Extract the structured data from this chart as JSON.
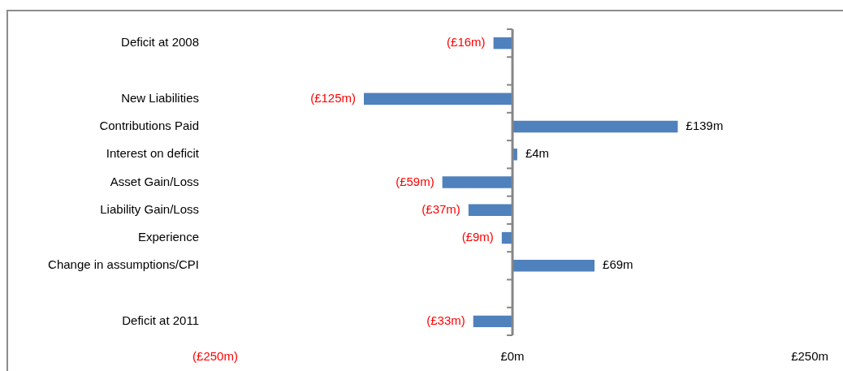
{
  "chart_data": {
    "type": "bar",
    "orientation": "horizontal",
    "categories": [
      "Deficit at 2008",
      null,
      "New Liabilities",
      "Contributions Paid",
      "Interest on deficit",
      "Asset Gain/Loss",
      "Liability Gain/Loss",
      "Experience",
      "Change in assumptions/CPI",
      null,
      "Deficit at 2011"
    ],
    "values": [
      -16,
      null,
      -125,
      139,
      4,
      -59,
      -37,
      -9,
      69,
      null,
      -33
    ],
    "value_labels": [
      "(£16m)",
      null,
      "(£125m)",
      "£139m",
      "£4m",
      "(£59m)",
      "(£37m)",
      "(£9m)",
      "£69m",
      null,
      "(£33m)"
    ],
    "color": "#4f81bd",
    "xlim": [
      -250,
      250
    ],
    "xticks": [
      {
        "value": -250,
        "label": "(£250m)"
      },
      {
        "value": 0,
        "label": "£0m"
      },
      {
        "value": 250,
        "label": "£250m"
      }
    ]
  }
}
